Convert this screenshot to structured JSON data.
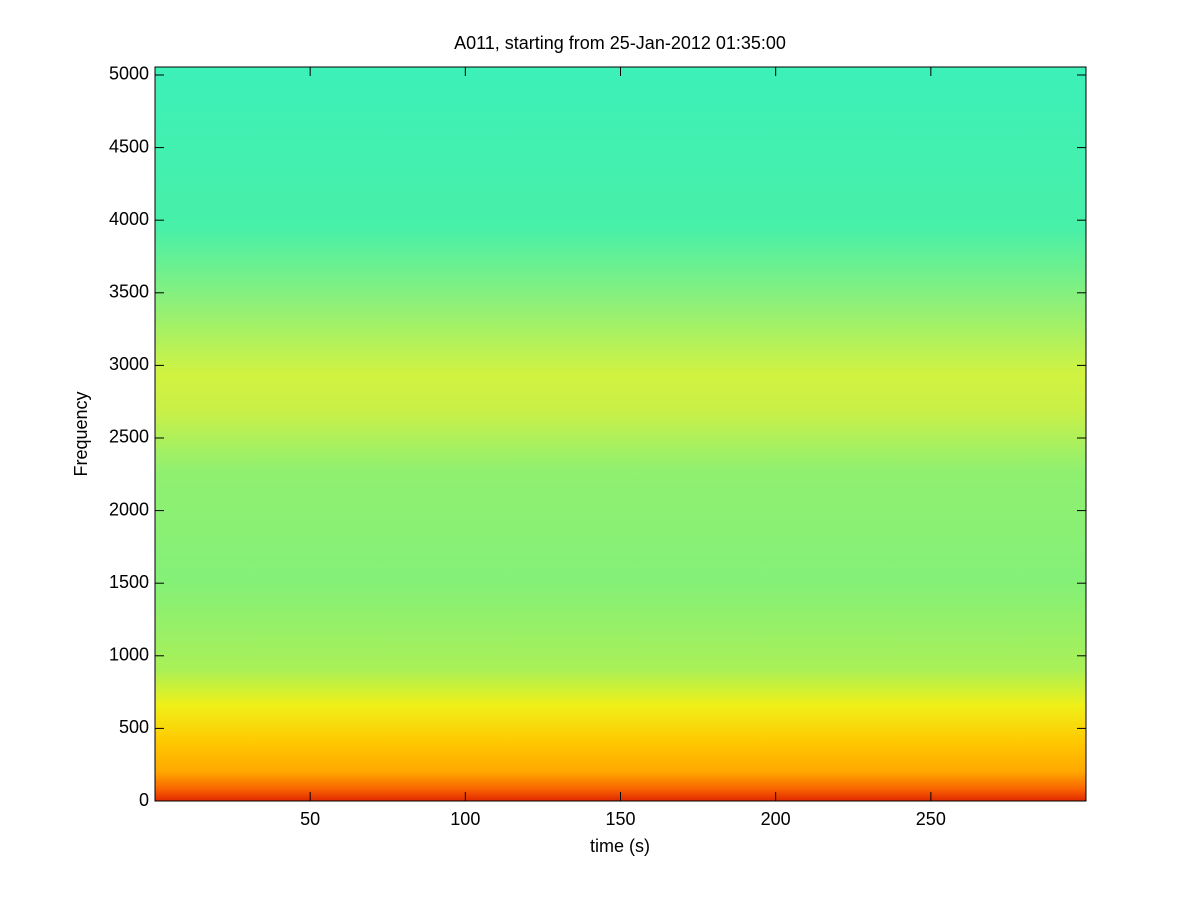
{
  "chart_data": {
    "type": "spectrogram",
    "title": "A011, starting from 25-Jan-2012 01:35:00",
    "x_label": "time (s)",
    "y_label": "Frequency",
    "xlim": [
      0,
      300
    ],
    "ylim": [
      0,
      5055
    ],
    "xticks": [
      50,
      100,
      150,
      200,
      250
    ],
    "yticks": [
      0,
      500,
      1000,
      1500,
      2000,
      2500,
      3000,
      3500,
      4000,
      4500,
      5000
    ],
    "colormap": "jet"
  }
}
